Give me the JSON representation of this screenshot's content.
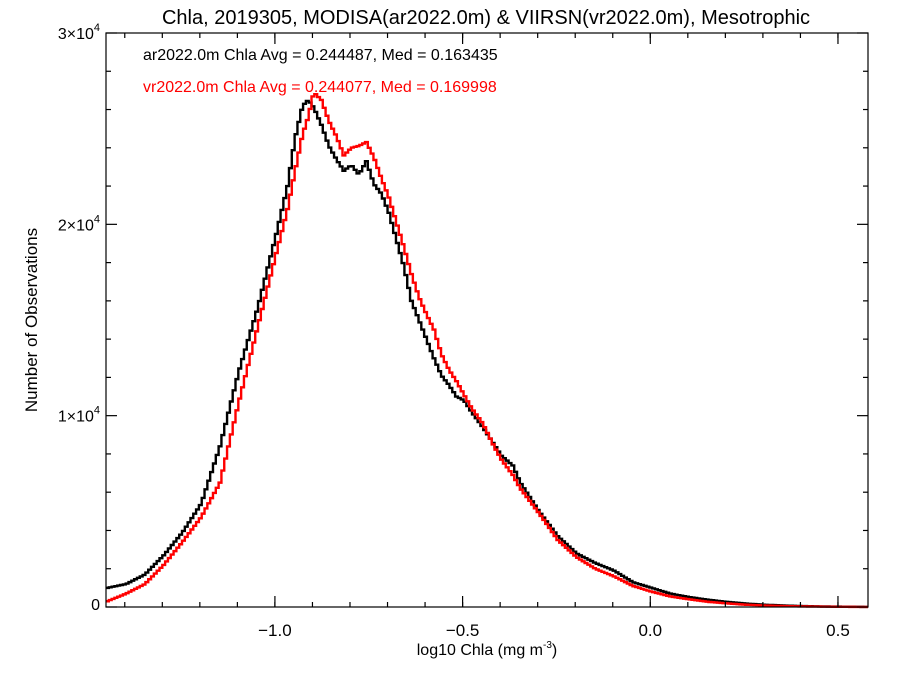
{
  "chart_data": {
    "type": "line",
    "title": "Chla, 2019305, MODISA(ar2022.0m) & VIIRSN(vr2022.0m), Mesotrophic",
    "xlabel": "log10 Chla (mg m",
    "xlabel_sup": "-3",
    "xlabel_end": ")",
    "ylabel": "Number of Observations",
    "xlim": [
      -1.45,
      0.58
    ],
    "ylim": [
      0,
      30000
    ],
    "grid": false,
    "x_ticks": [
      {
        "value": -1.0,
        "label": "−1.0"
      },
      {
        "value": -0.5,
        "label": "−0.5"
      },
      {
        "value": 0.0,
        "label": "0.0"
      },
      {
        "value": 0.5,
        "label": "0.5"
      }
    ],
    "y_ticks": [
      {
        "value": 0,
        "label": "0",
        "exp": ""
      },
      {
        "value": 10000,
        "label": "1×10",
        "exp": "4"
      },
      {
        "value": 20000,
        "label": "2×10",
        "exp": "4"
      },
      {
        "value": 30000,
        "label": "3×10",
        "exp": "4"
      }
    ],
    "annotations": [
      {
        "text": "ar2022.0m Chla Avg = 0.244487, Med = 0.163435",
        "color": "#000000"
      },
      {
        "text": "vr2022.0m Chla Avg = 0.244077, Med = 0.169998",
        "color": "#ff0000"
      }
    ],
    "series": [
      {
        "color": "#000000",
        "x": [
          -1.45,
          -1.4,
          -1.35,
          -1.3,
          -1.25,
          -1.2,
          -1.15,
          -1.1,
          -1.05,
          -1.0,
          -0.97,
          -0.95,
          -0.93,
          -0.915,
          -0.9,
          -0.88,
          -0.86,
          -0.84,
          -0.82,
          -0.8,
          -0.78,
          -0.76,
          -0.74,
          -0.72,
          -0.7,
          -0.68,
          -0.66,
          -0.64,
          -0.62,
          -0.6,
          -0.58,
          -0.56,
          -0.54,
          -0.52,
          -0.5,
          -0.48,
          -0.45,
          -0.42,
          -0.4,
          -0.37,
          -0.35,
          -0.3,
          -0.25,
          -0.2,
          -0.15,
          -0.1,
          -0.05,
          0.0,
          0.05,
          0.1,
          0.15,
          0.2,
          0.25,
          0.3,
          0.35,
          0.4,
          0.45,
          0.5,
          0.55,
          0.58
        ],
        "y": [
          1000,
          1200,
          1700,
          2700,
          3900,
          5400,
          8400,
          12300,
          15600,
          19500,
          22000,
          24500,
          26200,
          26500,
          26100,
          25200,
          24100,
          23400,
          22800,
          23100,
          22600,
          23300,
          22100,
          21600,
          20600,
          19200,
          17800,
          16000,
          15000,
          14000,
          13000,
          12100,
          11600,
          11000,
          10800,
          10200,
          9400,
          8500,
          7900,
          7400,
          6500,
          5000,
          3700,
          2800,
          2300,
          1900,
          1300,
          1000,
          700,
          520,
          380,
          270,
          180,
          120,
          80,
          50,
          30,
          20,
          10,
          0
        ]
      },
      {
        "color": "#ff0000",
        "x": [
          -1.45,
          -1.4,
          -1.35,
          -1.3,
          -1.25,
          -1.2,
          -1.15,
          -1.1,
          -1.05,
          -1.0,
          -0.97,
          -0.95,
          -0.93,
          -0.915,
          -0.9,
          -0.88,
          -0.86,
          -0.84,
          -0.82,
          -0.8,
          -0.78,
          -0.76,
          -0.74,
          -0.72,
          -0.7,
          -0.68,
          -0.66,
          -0.64,
          -0.62,
          -0.6,
          -0.58,
          -0.56,
          -0.54,
          -0.52,
          -0.5,
          -0.48,
          -0.45,
          -0.42,
          -0.4,
          -0.37,
          -0.35,
          -0.3,
          -0.25,
          -0.2,
          -0.15,
          -0.1,
          -0.05,
          0.0,
          0.05,
          0.1,
          0.15,
          0.2,
          0.25,
          0.3,
          0.35,
          0.4,
          0.45,
          0.5,
          0.55,
          0.58
        ],
        "y": [
          300,
          700,
          1200,
          2200,
          3400,
          4700,
          6500,
          10700,
          14600,
          18500,
          20800,
          22800,
          24700,
          25600,
          26900,
          26500,
          25400,
          24600,
          23600,
          24000,
          24100,
          24300,
          23500,
          22400,
          21400,
          20100,
          18800,
          17400,
          16200,
          15300,
          14500,
          13200,
          12400,
          11800,
          11100,
          10400,
          9600,
          8400,
          7700,
          6900,
          6200,
          4900,
          3500,
          2600,
          2000,
          1600,
          1100,
          800,
          550,
          400,
          270,
          190,
          120,
          80,
          50,
          30,
          20,
          10,
          5,
          0
        ]
      }
    ]
  }
}
